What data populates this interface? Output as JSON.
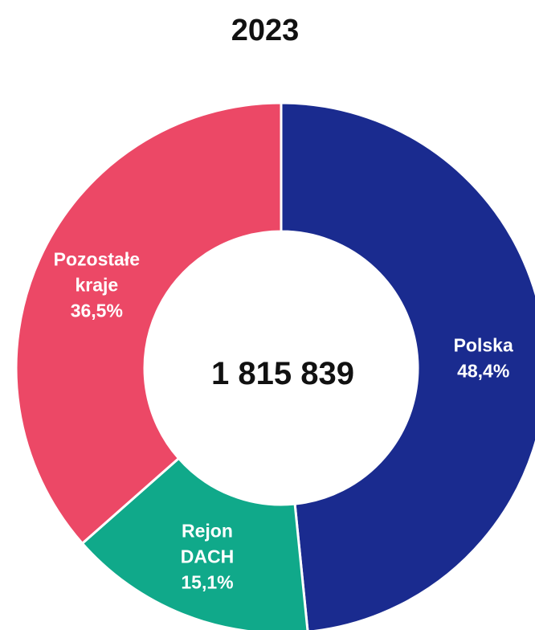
{
  "chart_data": {
    "type": "donut",
    "title": "2023",
    "categories": [
      "Polska",
      "Rejon DACH",
      "Pozostałe kraje"
    ],
    "values": [
      48.4,
      15.1,
      36.5
    ],
    "value_labels": [
      "48,4%",
      "15,1%",
      "36,5%"
    ],
    "colors": [
      "#1a2b8f",
      "#10a98a",
      "#ec4866"
    ],
    "center_text": "1 815 839"
  }
}
